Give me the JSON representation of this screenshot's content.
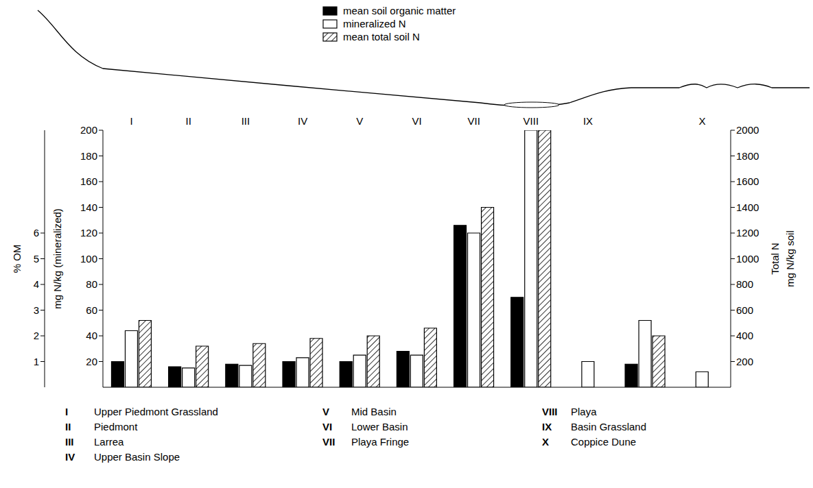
{
  "chart_data": {
    "type": "bar",
    "categories": [
      "I",
      "II",
      "III",
      "IV",
      "V",
      "VI",
      "VII",
      "VIII",
      "IX",
      null,
      "X"
    ],
    "site_names": [
      "Upper Piedmont Grassland",
      "Piedmont",
      "Larrea",
      "Upper Basin Slope",
      "Mid Basin",
      "Lower Basin",
      "Playa Fringe",
      "Playa",
      "Basin Grassland",
      "Coppice Dune"
    ],
    "series": [
      {
        "name": "mean soil organic matter",
        "color": "#000000",
        "axis": "y3",
        "values": [
          1.0,
          0.8,
          0.9,
          1.0,
          1.0,
          1.4,
          6.3,
          3.5,
          null,
          0.9,
          null
        ]
      },
      {
        "name": "mineralized N",
        "color": "#ffffff",
        "axis": "y",
        "values": [
          44,
          15,
          17,
          23,
          25,
          25,
          120,
          200,
          20,
          52,
          12
        ]
      },
      {
        "name": "mean total soil N",
        "color": "#000000",
        "line_style": "hatched",
        "axis": "y2",
        "values": [
          520,
          320,
          340,
          380,
          400,
          460,
          1400,
          2000,
          null,
          400,
          null
        ]
      }
    ],
    "ylim": [
      0,
      200
    ],
    "yticks": [
      20,
      40,
      60,
      80,
      100,
      120,
      140,
      160,
      180,
      200
    ],
    "y_label": "mg N/kg (mineralized)",
    "y2lim": [
      0,
      2000
    ],
    "y2ticks": [
      200,
      400,
      600,
      800,
      1000,
      1200,
      1400,
      1600,
      1800,
      2000
    ],
    "y2_label": [
      "Total N",
      "mg N/kg soil"
    ],
    "y3lim": [
      0,
      10
    ],
    "y3ticks": [
      1,
      2,
      3,
      4,
      5,
      6
    ],
    "y3_label": "% OM",
    "legend": "top",
    "grid": false
  }
}
